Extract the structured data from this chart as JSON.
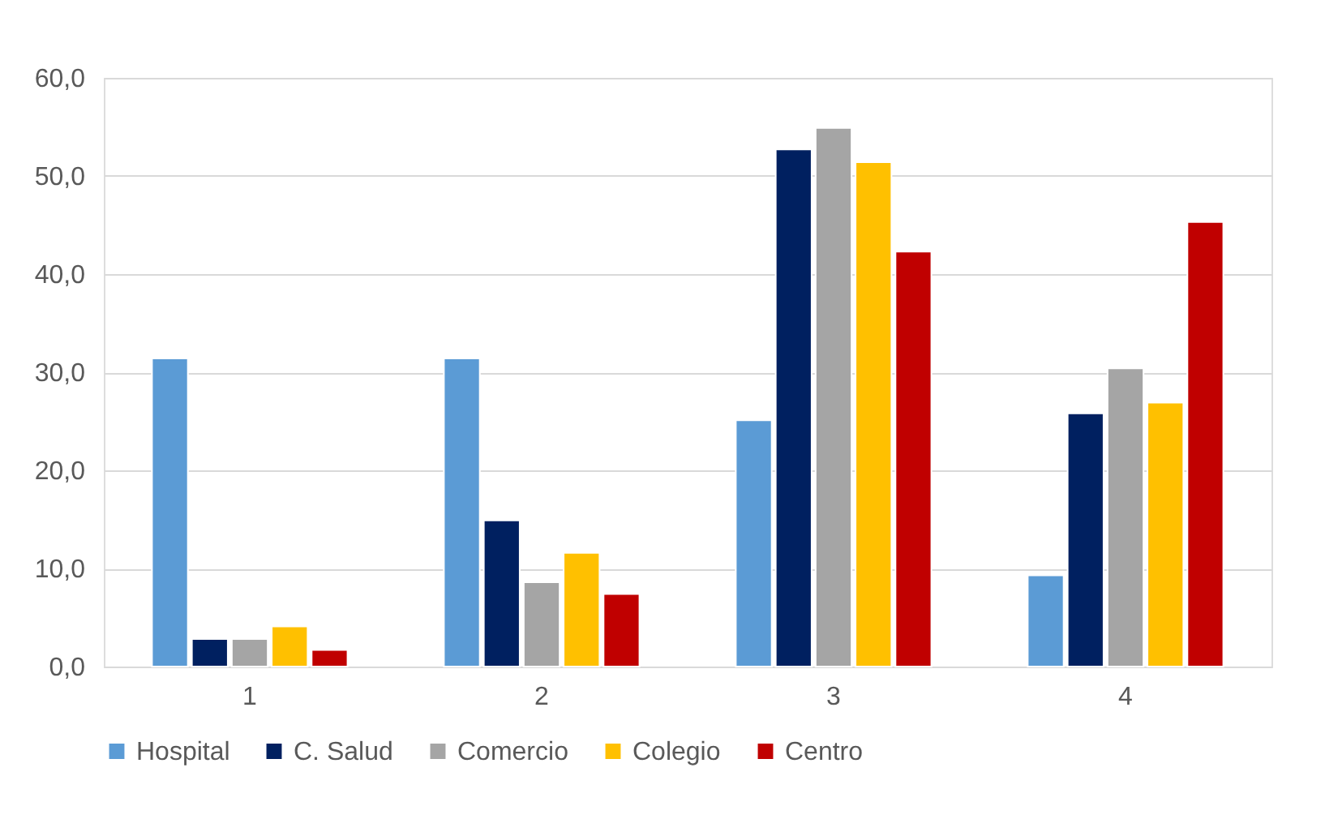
{
  "chart_data": {
    "type": "bar",
    "categories": [
      "1",
      "2",
      "3",
      "4"
    ],
    "series": [
      {
        "name": "Hospital",
        "color": "#5b9bd5",
        "values": [
          31.4,
          31.4,
          25.1,
          9.3
        ]
      },
      {
        "name": "C. Salud",
        "color": "#002060",
        "values": [
          2.8,
          14.9,
          52.7,
          25.8
        ]
      },
      {
        "name": "Comercio",
        "color": "#a5a5a5",
        "values": [
          2.8,
          8.6,
          54.9,
          30.4
        ]
      },
      {
        "name": "Colegio",
        "color": "#ffc000",
        "values": [
          4.1,
          11.6,
          51.4,
          26.9
        ]
      },
      {
        "name": "Centro",
        "color": "#c00000",
        "values": [
          1.7,
          7.4,
          42.3,
          45.3
        ]
      }
    ],
    "ylim": [
      0,
      60
    ],
    "yticks": [
      {
        "value": 0,
        "label": "0,0"
      },
      {
        "value": 10,
        "label": "10,0"
      },
      {
        "value": 20,
        "label": "20,0"
      },
      {
        "value": 30,
        "label": "30,0"
      },
      {
        "value": 40,
        "label": "40,0"
      },
      {
        "value": 50,
        "label": "50,0"
      },
      {
        "value": 60,
        "label": "60,0"
      }
    ],
    "grid": "y",
    "legend": "bottom"
  }
}
